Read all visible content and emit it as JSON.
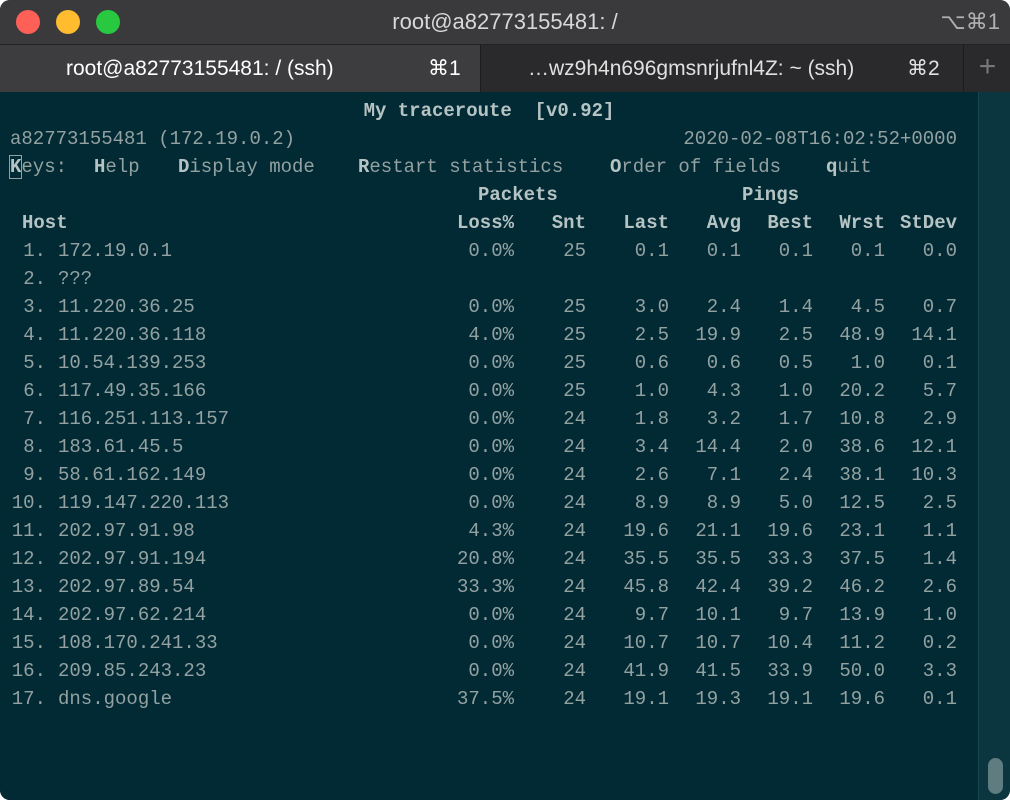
{
  "window": {
    "title": "root@a82773155481: /",
    "shortcut": "⌥⌘1"
  },
  "tabs": [
    {
      "label": "root@a82773155481: / (ssh)",
      "key": "⌘1",
      "active": true
    },
    {
      "label": "…wz9h4n696gmsnrjufnl4Z: ~ (ssh)",
      "key": "⌘2",
      "active": false
    }
  ],
  "new_tab": "+",
  "colors": {
    "background": "#022a34",
    "text": "#93a1a1"
  },
  "mtr": {
    "title": "My traceroute  [v0.92]",
    "host_info": "a82773155481 (172.19.0.2)",
    "timestamp": "2020-02-08T16:02:52+0000",
    "keys": [
      {
        "hot": "K",
        "rest": "eys:"
      },
      {
        "hot": "H",
        "rest": "elp"
      },
      {
        "hot": "D",
        "rest": "isplay mode"
      },
      {
        "hot": "R",
        "rest": "estart statistics"
      },
      {
        "hot": "O",
        "rest": "rder of fields"
      },
      {
        "hot": "q",
        "rest": "uit"
      }
    ],
    "group_headers": {
      "packets": "Packets",
      "pings": "Pings"
    },
    "columns": [
      "Host",
      "Loss%",
      "Snt",
      "Last",
      "Avg",
      "Best",
      "Wrst",
      "StDev"
    ],
    "rows": [
      [
        "1.",
        "172.19.0.1",
        "0.0%",
        "25",
        "0.1",
        "0.1",
        "0.1",
        "0.1",
        "0.0"
      ],
      [
        "2.",
        "???",
        "",
        "",
        "",
        "",
        "",
        "",
        ""
      ],
      [
        "3.",
        "11.220.36.25",
        "0.0%",
        "25",
        "3.0",
        "2.4",
        "1.4",
        "4.5",
        "0.7"
      ],
      [
        "4.",
        "11.220.36.118",
        "4.0%",
        "25",
        "2.5",
        "19.9",
        "2.5",
        "48.9",
        "14.1"
      ],
      [
        "5.",
        "10.54.139.253",
        "0.0%",
        "25",
        "0.6",
        "0.6",
        "0.5",
        "1.0",
        "0.1"
      ],
      [
        "6.",
        "117.49.35.166",
        "0.0%",
        "25",
        "1.0",
        "4.3",
        "1.0",
        "20.2",
        "5.7"
      ],
      [
        "7.",
        "116.251.113.157",
        "0.0%",
        "24",
        "1.8",
        "3.2",
        "1.7",
        "10.8",
        "2.9"
      ],
      [
        "8.",
        "183.61.45.5",
        "0.0%",
        "24",
        "3.4",
        "14.4",
        "2.0",
        "38.6",
        "12.1"
      ],
      [
        "9.",
        "58.61.162.149",
        "0.0%",
        "24",
        "2.6",
        "7.1",
        "2.4",
        "38.1",
        "10.3"
      ],
      [
        "10.",
        "119.147.220.113",
        "0.0%",
        "24",
        "8.9",
        "8.9",
        "5.0",
        "12.5",
        "2.5"
      ],
      [
        "11.",
        "202.97.91.98",
        "4.3%",
        "24",
        "19.6",
        "21.1",
        "19.6",
        "23.1",
        "1.1"
      ],
      [
        "12.",
        "202.97.91.194",
        "20.8%",
        "24",
        "35.5",
        "35.5",
        "33.3",
        "37.5",
        "1.4"
      ],
      [
        "13.",
        "202.97.89.54",
        "33.3%",
        "24",
        "45.8",
        "42.4",
        "39.2",
        "46.2",
        "2.6"
      ],
      [
        "14.",
        "202.97.62.214",
        "0.0%",
        "24",
        "9.7",
        "10.1",
        "9.7",
        "13.9",
        "1.0"
      ],
      [
        "15.",
        "108.170.241.33",
        "0.0%",
        "24",
        "10.7",
        "10.7",
        "10.4",
        "11.2",
        "0.2"
      ],
      [
        "16.",
        "209.85.243.23",
        "0.0%",
        "24",
        "41.9",
        "41.5",
        "33.9",
        "50.0",
        "3.3"
      ],
      [
        "17.",
        "dns.google",
        "37.5%",
        "24",
        "19.1",
        "19.3",
        "19.1",
        "19.6",
        "0.1"
      ]
    ]
  }
}
